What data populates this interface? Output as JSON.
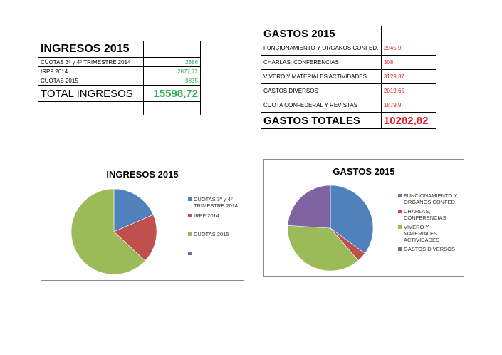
{
  "ingresos": {
    "title": "INGRESOS 2015",
    "rows": [
      {
        "label": "CUOTAS 3º y 4º TRIMESTRE  2014",
        "value": "2886"
      },
      {
        "label": "IRPF 2014",
        "value": "2877,72"
      },
      {
        "label": "CUOTAS 2015",
        "value": "9835"
      }
    ],
    "total_label": "TOTAL INGRESOS",
    "total_value": "15598,72"
  },
  "gastos": {
    "title": "GASTOS 2015",
    "rows": [
      {
        "label": "FUNCIONAMIENTO Y ORGANOS CONFED.",
        "value": "2945,9"
      },
      {
        "label": "CHARLAS, CONFERENCIAS",
        "value": "308"
      },
      {
        "label": "VIVERO Y MATERIALES ACTIVIDADES",
        "value": "3129,37"
      },
      {
        "label": "GASTOS DIVERSOS",
        "value": "2019,65"
      },
      {
        "label": "CUOTA CONFEDERAL Y  REVISTAS",
        "value": "1879,9"
      }
    ],
    "total_label": "GASTOS TOTALES",
    "total_value": "10282,82"
  },
  "colors": {
    "green_text": "#2eae4f",
    "red_text": "#e0242a",
    "blue": "#4f81bd",
    "red": "#c0504d",
    "green": "#9bbb59",
    "purple": "#8064a2"
  },
  "chart_data": [
    {
      "type": "pie",
      "title": "INGRESOS 2015",
      "legend_position": "right",
      "slices": [
        {
          "name": "CUOTAS 3º y 4º TRIMESTRE  2014",
          "value": 2886,
          "color": "#4f81bd"
        },
        {
          "name": "IRPF 2014",
          "value": 2877.72,
          "color": "#c0504d"
        },
        {
          "name": "CUOTAS 2015",
          "value": 9835,
          "color": "#9bbb59"
        },
        {
          "name": "",
          "value": 0,
          "color": "#8064a2"
        }
      ]
    },
    {
      "type": "pie",
      "title": "GASTOS 2015",
      "legend_position": "right",
      "slices": [
        {
          "name": "FUNCIONAMIENTO Y ORGANOS CONFED.",
          "value": 2945.9,
          "color": "#4f81bd"
        },
        {
          "name": "CHARLAS, CONFERENCIAS",
          "value": 308,
          "color": "#c0504d"
        },
        {
          "name": "VIVERO Y MATERIALES ACTIVIDADES",
          "value": 3129.37,
          "color": "#9bbb59"
        },
        {
          "name": "GASTOS DIVERSOS",
          "value": 2019.65,
          "color": "#8064a2"
        }
      ]
    }
  ]
}
